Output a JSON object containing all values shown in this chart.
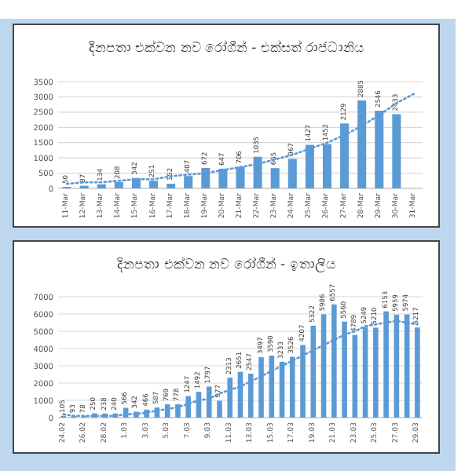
{
  "chart_data": [
    {
      "type": "bar",
      "title": "දිනපතා එක්වන නව රෝගීන් - එක්සත් රාජධානිය",
      "categories": [
        "11-Mar",
        "12-Mar",
        "13-Mar",
        "14-Mar",
        "15-Mar",
        "16-Mar",
        "17-Mar",
        "18-Mar",
        "19-Mar",
        "20-Mar",
        "21-Mar",
        "22-Mar",
        "23-Mar",
        "24-Mar",
        "25-Mar",
        "26-Mar",
        "27-Mar",
        "28-Mar",
        "29-Mar",
        "30-Mar",
        "31-Mar"
      ],
      "series": [
        {
          "color": "#5b9bd5",
          "values": [
            50,
            87,
            134,
            208,
            342,
            251,
            152,
            407,
            672,
            647,
            706,
            1035,
            665,
            967,
            1427,
            1452,
            2129,
            2885,
            2546,
            2433,
            null
          ],
          "value_labels": [
            "50",
            "87",
            "134",
            "208",
            "342",
            "251",
            "152",
            "407",
            "672",
            "647",
            "706",
            "1035",
            "665",
            "967",
            "1427",
            "1452",
            "2129",
            "2885",
            "2546",
            "2433",
            null
          ]
        },
        {
          "type": "line",
          "color": "#5b9bd5",
          "line_style": "dotted",
          "values": [
            150,
            200,
            200,
            250,
            300,
            300,
            400,
            450,
            500,
            600,
            700,
            800,
            950,
            1100,
            1300,
            1500,
            1750,
            2050,
            2400,
            2800,
            3100
          ]
        }
      ],
      "ylim": [
        0,
        3500
      ],
      "yticks": [
        0,
        500,
        1000,
        1500,
        2000,
        2500,
        3000,
        3500
      ],
      "grid": "y"
    },
    {
      "type": "bar",
      "title": "දිනපතා එක්වන නව රෝගීන් - ඉතාලිය",
      "categories": [
        "24.02",
        null,
        "26.02",
        null,
        "28.02",
        null,
        "1.03",
        null,
        "3.03",
        null,
        "5.03",
        null,
        "7.03",
        null,
        "9.03",
        null,
        "11.03",
        null,
        "13.03",
        null,
        "15.03",
        null,
        "17.03",
        null,
        "19.03",
        null,
        "21.03",
        null,
        "23.03",
        null,
        "25.03",
        null,
        "27.03",
        null,
        "29.03"
      ],
      "series": [
        {
          "color": "#5b9bd5",
          "values": [
            105,
            93,
            78,
            250,
            238,
            240,
            566,
            342,
            466,
            587,
            769,
            778,
            1247,
            1492,
            1797,
            977,
            2313,
            2651,
            2547,
            3497,
            3590,
            3233,
            3526,
            4207,
            5322,
            5986,
            6557,
            5560,
            4789,
            5249,
            5210,
            6153,
            5959,
            5974,
            5217
          ],
          "value_labels": [
            "105",
            "93",
            "78",
            "250",
            "238",
            "240",
            "566",
            "342",
            "466",
            "587",
            "769",
            "778",
            "1247",
            "1492",
            "1797",
            "977",
            "2313",
            "2651",
            "2547",
            "3497",
            "3590",
            "3233",
            "3526",
            "4207",
            "5322",
            "5986",
            "6557",
            "5560",
            "4789",
            "5249",
            "5210",
            "6153",
            "5959",
            "5974",
            "5217"
          ]
        },
        {
          "type": "line",
          "color": "#5b9bd5",
          "line_style": "dotted",
          "values": [
            200,
            100,
            100,
            100,
            100,
            100,
            200,
            200,
            300,
            400,
            500,
            600,
            800,
            1000,
            1100,
            1400,
            1600,
            1800,
            2100,
            2400,
            2700,
            3000,
            3300,
            3600,
            3900,
            4200,
            4500,
            4800,
            5000,
            5300,
            5400,
            5500,
            5600,
            5500,
            5400
          ]
        }
      ],
      "ylim": [
        0,
        7000
      ],
      "yticks": [
        0,
        1000,
        2000,
        3000,
        4000,
        5000,
        6000,
        7000
      ],
      "grid": "y"
    }
  ]
}
